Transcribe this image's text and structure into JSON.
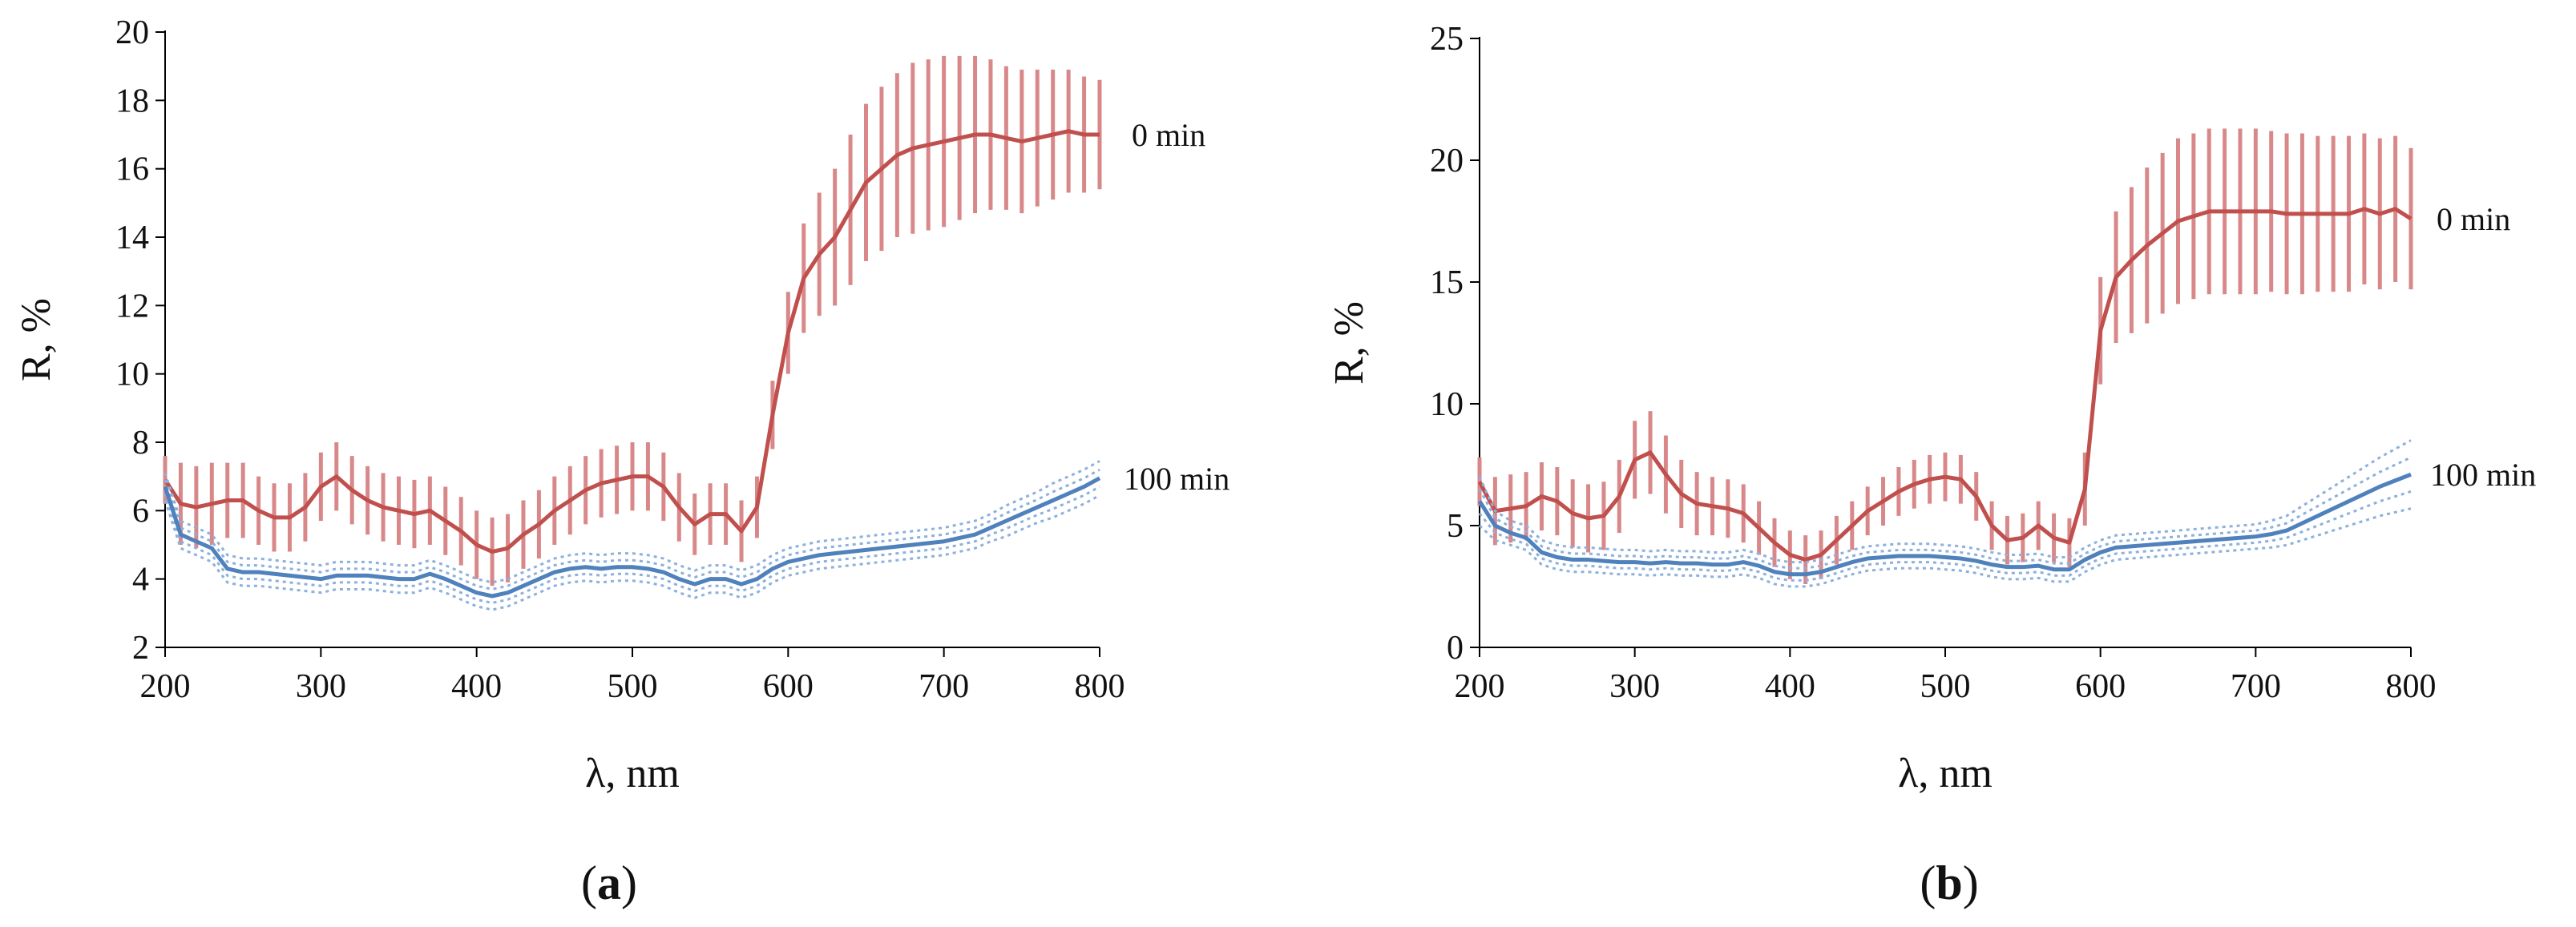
{
  "colors": {
    "series_0min": "#C0504D",
    "series_0min_err": "#D9888A",
    "series_100min": "#4F81BD",
    "series_100min_err": "#8DB0DC",
    "axis": "#000000"
  },
  "chart_data": [
    {
      "panel": "a",
      "panel_label_open": "(",
      "panel_label_letter": "a",
      "panel_label_close": ")",
      "type": "line",
      "xlabel": "λ, nm",
      "ylabel": "R, %",
      "xlim": [
        200,
        800
      ],
      "ylim": [
        2,
        20
      ],
      "xticks": [
        200,
        300,
        400,
        500,
        600,
        700,
        800
      ],
      "yticks": [
        2,
        4,
        6,
        8,
        10,
        12,
        14,
        16,
        18,
        20
      ],
      "grid": false,
      "series": [
        {
          "name": "0 min",
          "color": "#C0504D",
          "error_style": "vertical bars",
          "x": [
            200,
            210,
            220,
            230,
            240,
            250,
            260,
            270,
            280,
            290,
            300,
            310,
            320,
            330,
            340,
            350,
            360,
            370,
            380,
            390,
            400,
            410,
            420,
            430,
            440,
            450,
            460,
            470,
            480,
            490,
            500,
            510,
            520,
            530,
            540,
            550,
            560,
            570,
            580,
            590,
            600,
            610,
            620,
            630,
            640,
            650,
            660,
            670,
            680,
            690,
            700,
            710,
            720,
            730,
            740,
            750,
            760,
            770,
            780,
            790,
            800
          ],
          "y": [
            6.9,
            6.2,
            6.1,
            6.2,
            6.3,
            6.3,
            6.0,
            5.8,
            5.8,
            6.1,
            6.7,
            7.0,
            6.6,
            6.3,
            6.1,
            6.0,
            5.9,
            6.0,
            5.7,
            5.4,
            5.0,
            4.8,
            4.9,
            5.3,
            5.6,
            6.0,
            6.3,
            6.6,
            6.8,
            6.9,
            7.0,
            7.0,
            6.7,
            6.1,
            5.6,
            5.9,
            5.9,
            5.4,
            6.1,
            8.8,
            11.2,
            12.8,
            13.5,
            14.0,
            14.8,
            15.6,
            16.0,
            16.4,
            16.6,
            16.7,
            16.8,
            16.9,
            17.0,
            17.0,
            16.9,
            16.8,
            16.9,
            17.0,
            17.1,
            17.0,
            17.0
          ],
          "err": [
            0.7,
            1.2,
            1.2,
            1.2,
            1.1,
            1.1,
            1.0,
            1.0,
            1.0,
            1.0,
            1.0,
            1.0,
            1.0,
            1.0,
            1.0,
            1.0,
            1.0,
            1.0,
            1.0,
            1.0,
            1.0,
            1.0,
            1.0,
            1.0,
            1.0,
            1.0,
            1.0,
            1.0,
            1.0,
            1.0,
            1.0,
            1.0,
            1.0,
            1.0,
            0.9,
            0.9,
            0.9,
            0.9,
            0.9,
            1.0,
            1.2,
            1.6,
            1.8,
            2.0,
            2.2,
            2.3,
            2.4,
            2.4,
            2.5,
            2.5,
            2.5,
            2.4,
            2.3,
            2.2,
            2.1,
            2.1,
            2.0,
            1.9,
            1.8,
            1.7,
            1.6
          ]
        },
        {
          "name": "100 min",
          "color": "#4F81BD",
          "error_style": "dotted band",
          "x": [
            200,
            210,
            220,
            230,
            240,
            250,
            260,
            270,
            280,
            290,
            300,
            310,
            320,
            330,
            340,
            350,
            360,
            370,
            380,
            390,
            400,
            410,
            420,
            430,
            440,
            450,
            460,
            470,
            480,
            490,
            500,
            510,
            520,
            530,
            540,
            550,
            560,
            570,
            580,
            590,
            600,
            610,
            620,
            630,
            640,
            650,
            660,
            670,
            680,
            690,
            700,
            710,
            720,
            730,
            740,
            750,
            760,
            770,
            780,
            790,
            800
          ],
          "y": [
            6.7,
            5.3,
            5.1,
            4.9,
            4.3,
            4.2,
            4.2,
            4.15,
            4.1,
            4.05,
            4.0,
            4.1,
            4.1,
            4.1,
            4.05,
            4.0,
            4.0,
            4.15,
            4.0,
            3.8,
            3.6,
            3.5,
            3.6,
            3.8,
            4.0,
            4.2,
            4.3,
            4.35,
            4.3,
            4.35,
            4.35,
            4.3,
            4.2,
            4.0,
            3.85,
            4.0,
            4.0,
            3.85,
            4.0,
            4.3,
            4.5,
            4.6,
            4.7,
            4.75,
            4.8,
            4.85,
            4.9,
            4.95,
            5.0,
            5.05,
            5.1,
            5.2,
            5.3,
            5.5,
            5.7,
            5.9,
            6.1,
            6.3,
            6.5,
            6.7,
            6.95
          ],
          "err": [
            0.4,
            0.4,
            0.4,
            0.4,
            0.4,
            0.4,
            0.4,
            0.4,
            0.4,
            0.4,
            0.4,
            0.4,
            0.4,
            0.4,
            0.4,
            0.4,
            0.4,
            0.4,
            0.4,
            0.4,
            0.4,
            0.4,
            0.4,
            0.4,
            0.4,
            0.4,
            0.4,
            0.4,
            0.4,
            0.4,
            0.4,
            0.4,
            0.4,
            0.4,
            0.4,
            0.4,
            0.4,
            0.4,
            0.4,
            0.4,
            0.4,
            0.4,
            0.4,
            0.4,
            0.4,
            0.4,
            0.4,
            0.4,
            0.4,
            0.4,
            0.4,
            0.4,
            0.4,
            0.4,
            0.45,
            0.45,
            0.45,
            0.5,
            0.5,
            0.5,
            0.5
          ]
        }
      ]
    },
    {
      "panel": "b",
      "panel_label_open": "(",
      "panel_label_letter": "b",
      "panel_label_close": ")",
      "type": "line",
      "xlabel": "λ, nm",
      "ylabel": "R, %",
      "xlim": [
        200,
        800
      ],
      "ylim": [
        0,
        25
      ],
      "xticks": [
        200,
        300,
        400,
        500,
        600,
        700,
        800
      ],
      "yticks": [
        0,
        5,
        10,
        15,
        20,
        25
      ],
      "grid": false,
      "series": [
        {
          "name": "0 min",
          "color": "#C0504D",
          "error_style": "vertical bars",
          "x": [
            200,
            210,
            220,
            230,
            240,
            250,
            260,
            270,
            280,
            290,
            300,
            310,
            320,
            330,
            340,
            350,
            360,
            370,
            380,
            390,
            400,
            410,
            420,
            430,
            440,
            450,
            460,
            470,
            480,
            490,
            500,
            510,
            520,
            530,
            540,
            550,
            560,
            570,
            580,
            590,
            600,
            610,
            620,
            630,
            640,
            650,
            660,
            670,
            680,
            690,
            700,
            710,
            720,
            730,
            740,
            750,
            760,
            770,
            780,
            790,
            800
          ],
          "y": [
            6.8,
            5.6,
            5.7,
            5.8,
            6.2,
            6.0,
            5.5,
            5.3,
            5.4,
            6.2,
            7.7,
            8.0,
            7.1,
            6.3,
            5.9,
            5.8,
            5.7,
            5.5,
            4.9,
            4.3,
            3.8,
            3.6,
            3.8,
            4.4,
            5.0,
            5.6,
            6.0,
            6.4,
            6.7,
            6.9,
            7.0,
            6.9,
            6.2,
            5.0,
            4.4,
            4.5,
            5.0,
            4.5,
            4.3,
            6.5,
            13.0,
            15.2,
            15.9,
            16.5,
            17.0,
            17.5,
            17.7,
            17.9,
            17.9,
            17.9,
            17.9,
            17.9,
            17.8,
            17.8,
            17.8,
            17.8,
            17.8,
            18.0,
            17.8,
            18.0,
            17.6
          ],
          "err": [
            1.0,
            1.4,
            1.4,
            1.4,
            1.4,
            1.4,
            1.4,
            1.4,
            1.4,
            1.5,
            1.6,
            1.7,
            1.6,
            1.4,
            1.3,
            1.2,
            1.2,
            1.2,
            1.1,
            1.0,
            1.0,
            1.0,
            1.0,
            1.0,
            1.0,
            1.0,
            1.0,
            1.0,
            1.0,
            1.0,
            1.0,
            1.0,
            1.0,
            1.0,
            1.0,
            1.0,
            1.0,
            1.0,
            1.0,
            1.5,
            2.2,
            2.7,
            3.0,
            3.2,
            3.3,
            3.4,
            3.4,
            3.4,
            3.4,
            3.4,
            3.4,
            3.3,
            3.3,
            3.3,
            3.2,
            3.2,
            3.2,
            3.1,
            3.1,
            3.0,
            2.9
          ]
        },
        {
          "name": "100 min",
          "color": "#4F81BD",
          "error_style": "dotted band",
          "x": [
            200,
            210,
            220,
            230,
            240,
            250,
            260,
            270,
            280,
            290,
            300,
            310,
            320,
            330,
            340,
            350,
            360,
            370,
            380,
            390,
            400,
            410,
            420,
            430,
            440,
            450,
            460,
            470,
            480,
            490,
            500,
            510,
            520,
            530,
            540,
            550,
            560,
            570,
            580,
            590,
            600,
            610,
            620,
            630,
            640,
            650,
            660,
            670,
            680,
            690,
            700,
            710,
            720,
            730,
            740,
            750,
            760,
            770,
            780,
            790,
            800
          ],
          "y": [
            6.0,
            5.0,
            4.7,
            4.5,
            3.9,
            3.7,
            3.6,
            3.6,
            3.55,
            3.5,
            3.5,
            3.45,
            3.5,
            3.45,
            3.45,
            3.4,
            3.4,
            3.5,
            3.35,
            3.1,
            3.0,
            3.0,
            3.1,
            3.3,
            3.5,
            3.65,
            3.7,
            3.75,
            3.75,
            3.75,
            3.7,
            3.65,
            3.55,
            3.4,
            3.3,
            3.3,
            3.35,
            3.2,
            3.2,
            3.6,
            3.9,
            4.1,
            4.15,
            4.2,
            4.25,
            4.3,
            4.35,
            4.4,
            4.45,
            4.5,
            4.55,
            4.65,
            4.8,
            5.1,
            5.4,
            5.7,
            6.0,
            6.3,
            6.6,
            6.85,
            7.1
          ],
          "err": [
            1.0,
            0.6,
            0.5,
            0.5,
            0.5,
            0.5,
            0.5,
            0.5,
            0.5,
            0.5,
            0.5,
            0.5,
            0.5,
            0.5,
            0.5,
            0.5,
            0.5,
            0.5,
            0.5,
            0.5,
            0.5,
            0.5,
            0.5,
            0.5,
            0.5,
            0.5,
            0.5,
            0.5,
            0.5,
            0.5,
            0.5,
            0.5,
            0.5,
            0.5,
            0.5,
            0.5,
            0.5,
            0.5,
            0.5,
            0.5,
            0.5,
            0.5,
            0.5,
            0.5,
            0.5,
            0.5,
            0.5,
            0.5,
            0.5,
            0.5,
            0.5,
            0.55,
            0.6,
            0.7,
            0.8,
            0.9,
            1.0,
            1.1,
            1.2,
            1.3,
            1.4
          ]
        }
      ]
    }
  ]
}
